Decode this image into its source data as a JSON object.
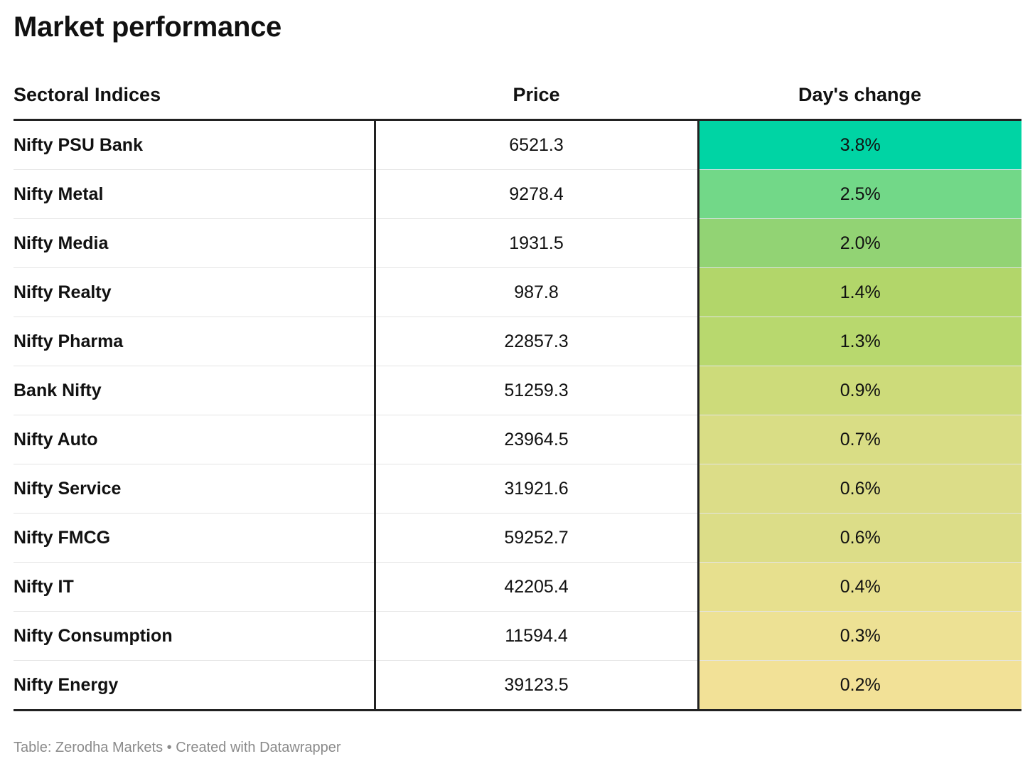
{
  "title": "Market performance",
  "columns": {
    "index": "Sectoral Indices",
    "price": "Price",
    "change": "Day's change"
  },
  "footer": {
    "source": "Table: Zerodha Markets",
    "separator": "•",
    "credit": "Created with Datawrapper"
  },
  "chart_data": {
    "type": "table",
    "columns": [
      "Sectoral Indices",
      "Price",
      "Day's change"
    ],
    "rows": [
      {
        "name": "Nifty PSU Bank",
        "price": "6521.3",
        "change": "3.8%",
        "change_value": 3.8,
        "color": "#00d4a4"
      },
      {
        "name": "Nifty Metal",
        "price": "9278.4",
        "change": "2.5%",
        "change_value": 2.5,
        "color": "#72d888"
      },
      {
        "name": "Nifty Media",
        "price": "1931.5",
        "change": "2.0%",
        "change_value": 2.0,
        "color": "#92d374"
      },
      {
        "name": "Nifty Realty",
        "price": "987.8",
        "change": "1.4%",
        "change_value": 1.4,
        "color": "#b2d66a"
      },
      {
        "name": "Nifty Pharma",
        "price": "22857.3",
        "change": "1.3%",
        "change_value": 1.3,
        "color": "#b8d86e"
      },
      {
        "name": "Bank Nifty",
        "price": "51259.3",
        "change": "0.9%",
        "change_value": 0.9,
        "color": "#cddb7a"
      },
      {
        "name": "Nifty Auto",
        "price": "23964.5",
        "change": "0.7%",
        "change_value": 0.7,
        "color": "#d9dd85"
      },
      {
        "name": "Nifty Service",
        "price": "31921.6",
        "change": "0.6%",
        "change_value": 0.6,
        "color": "#dcdd88"
      },
      {
        "name": "Nifty FMCG",
        "price": "59252.7",
        "change": "0.6%",
        "change_value": 0.6,
        "color": "#dcdd88"
      },
      {
        "name": "Nifty IT",
        "price": "42205.4",
        "change": "0.4%",
        "change_value": 0.4,
        "color": "#e7e08e"
      },
      {
        "name": "Nifty Consumption",
        "price": "11594.4",
        "change": "0.3%",
        "change_value": 0.3,
        "color": "#ede194"
      },
      {
        "name": "Nifty Energy",
        "price": "39123.5",
        "change": "0.2%",
        "change_value": 0.2,
        "color": "#f2e197"
      }
    ]
  }
}
